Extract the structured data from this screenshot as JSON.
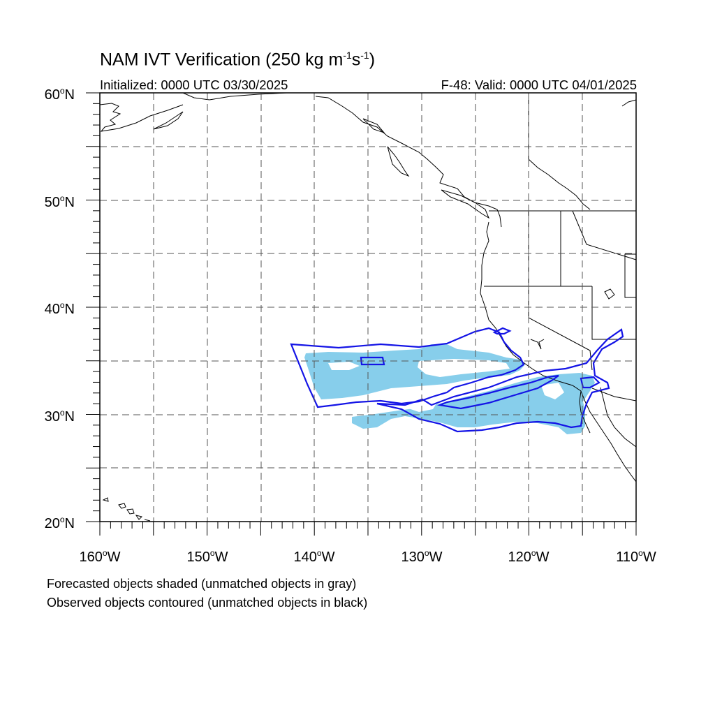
{
  "title": {
    "prefix": "NAM IVT Verification (250 kg m",
    "exp1": "-1",
    "mid": "s",
    "exp2": "-1",
    "suffix": ")"
  },
  "initialized": "Initialized: 0000 UTC 03/30/2025",
  "valid": "F-48: Valid: 0000 UTC 04/01/2025",
  "lat_labels": [
    {
      "value": "60",
      "dir": "N"
    },
    {
      "value": "50",
      "dir": "N"
    },
    {
      "value": "40",
      "dir": "N"
    },
    {
      "value": "30",
      "dir": "N"
    },
    {
      "value": "20",
      "dir": "N"
    }
  ],
  "lon_labels": [
    {
      "value": "160",
      "dir": "W"
    },
    {
      "value": "150",
      "dir": "W"
    },
    {
      "value": "140",
      "dir": "W"
    },
    {
      "value": "130",
      "dir": "W"
    },
    {
      "value": "120",
      "dir": "W"
    },
    {
      "value": "110",
      "dir": "W"
    }
  ],
  "map": {
    "lon_range": [
      -160,
      -110
    ],
    "lat_range": [
      20,
      60
    ],
    "grid_spacing_deg": 5,
    "forecast_fill_color": "#87ceeb",
    "observed_contour_color": "#1414e6"
  },
  "footnotes": {
    "line1": "Forecasted objects shaded (unmatched objects in gray)",
    "line2": "Observed objects contoured (unmatched objects in black)"
  }
}
